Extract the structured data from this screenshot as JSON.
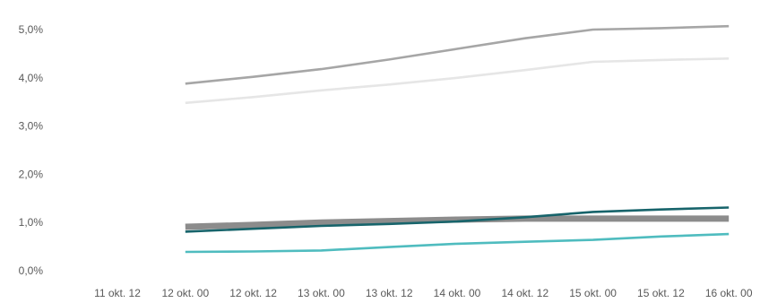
{
  "chart_data": {
    "type": "line",
    "title": "",
    "xlabel": "",
    "ylabel": "",
    "categories": [
      "11 okt. 12",
      "12 okt. 00",
      "12 okt. 12",
      "13 okt. 00",
      "13 okt. 12",
      "14 okt. 00",
      "14 okt. 12",
      "15 okt. 00",
      "15 okt. 12",
      "16 okt. 00"
    ],
    "y_ticks": [
      "0,0%",
      "1,0%",
      "2,0%",
      "3,0%",
      "4,0%",
      "5,0%"
    ],
    "ylim": [
      0,
      5.0
    ],
    "grid": false,
    "legend": "none",
    "series": [
      {
        "color": "#a6a6a6",
        "values": [
          null,
          3.88,
          4.02,
          4.18,
          4.38,
          4.6,
          4.82,
          5.0,
          5.03,
          5.07
        ]
      },
      {
        "color": "#e6e6e6",
        "values": [
          null,
          3.48,
          3.6,
          3.74,
          3.86,
          4.0,
          4.16,
          4.33,
          4.37,
          4.4
        ]
      },
      {
        "color": "#8c8c8c",
        "thick": true,
        "values": [
          null,
          0.91,
          0.95,
          1.0,
          1.03,
          1.06,
          1.08,
          1.08,
          1.08,
          1.08
        ]
      },
      {
        "color": "#17646b",
        "values": [
          null,
          0.81,
          0.87,
          0.93,
          0.97,
          1.02,
          1.11,
          1.22,
          1.27,
          1.31
        ]
      },
      {
        "color": "#4fbcbf",
        "values": [
          null,
          0.39,
          0.4,
          0.42,
          0.49,
          0.56,
          0.6,
          0.64,
          0.71,
          0.76
        ]
      }
    ]
  }
}
